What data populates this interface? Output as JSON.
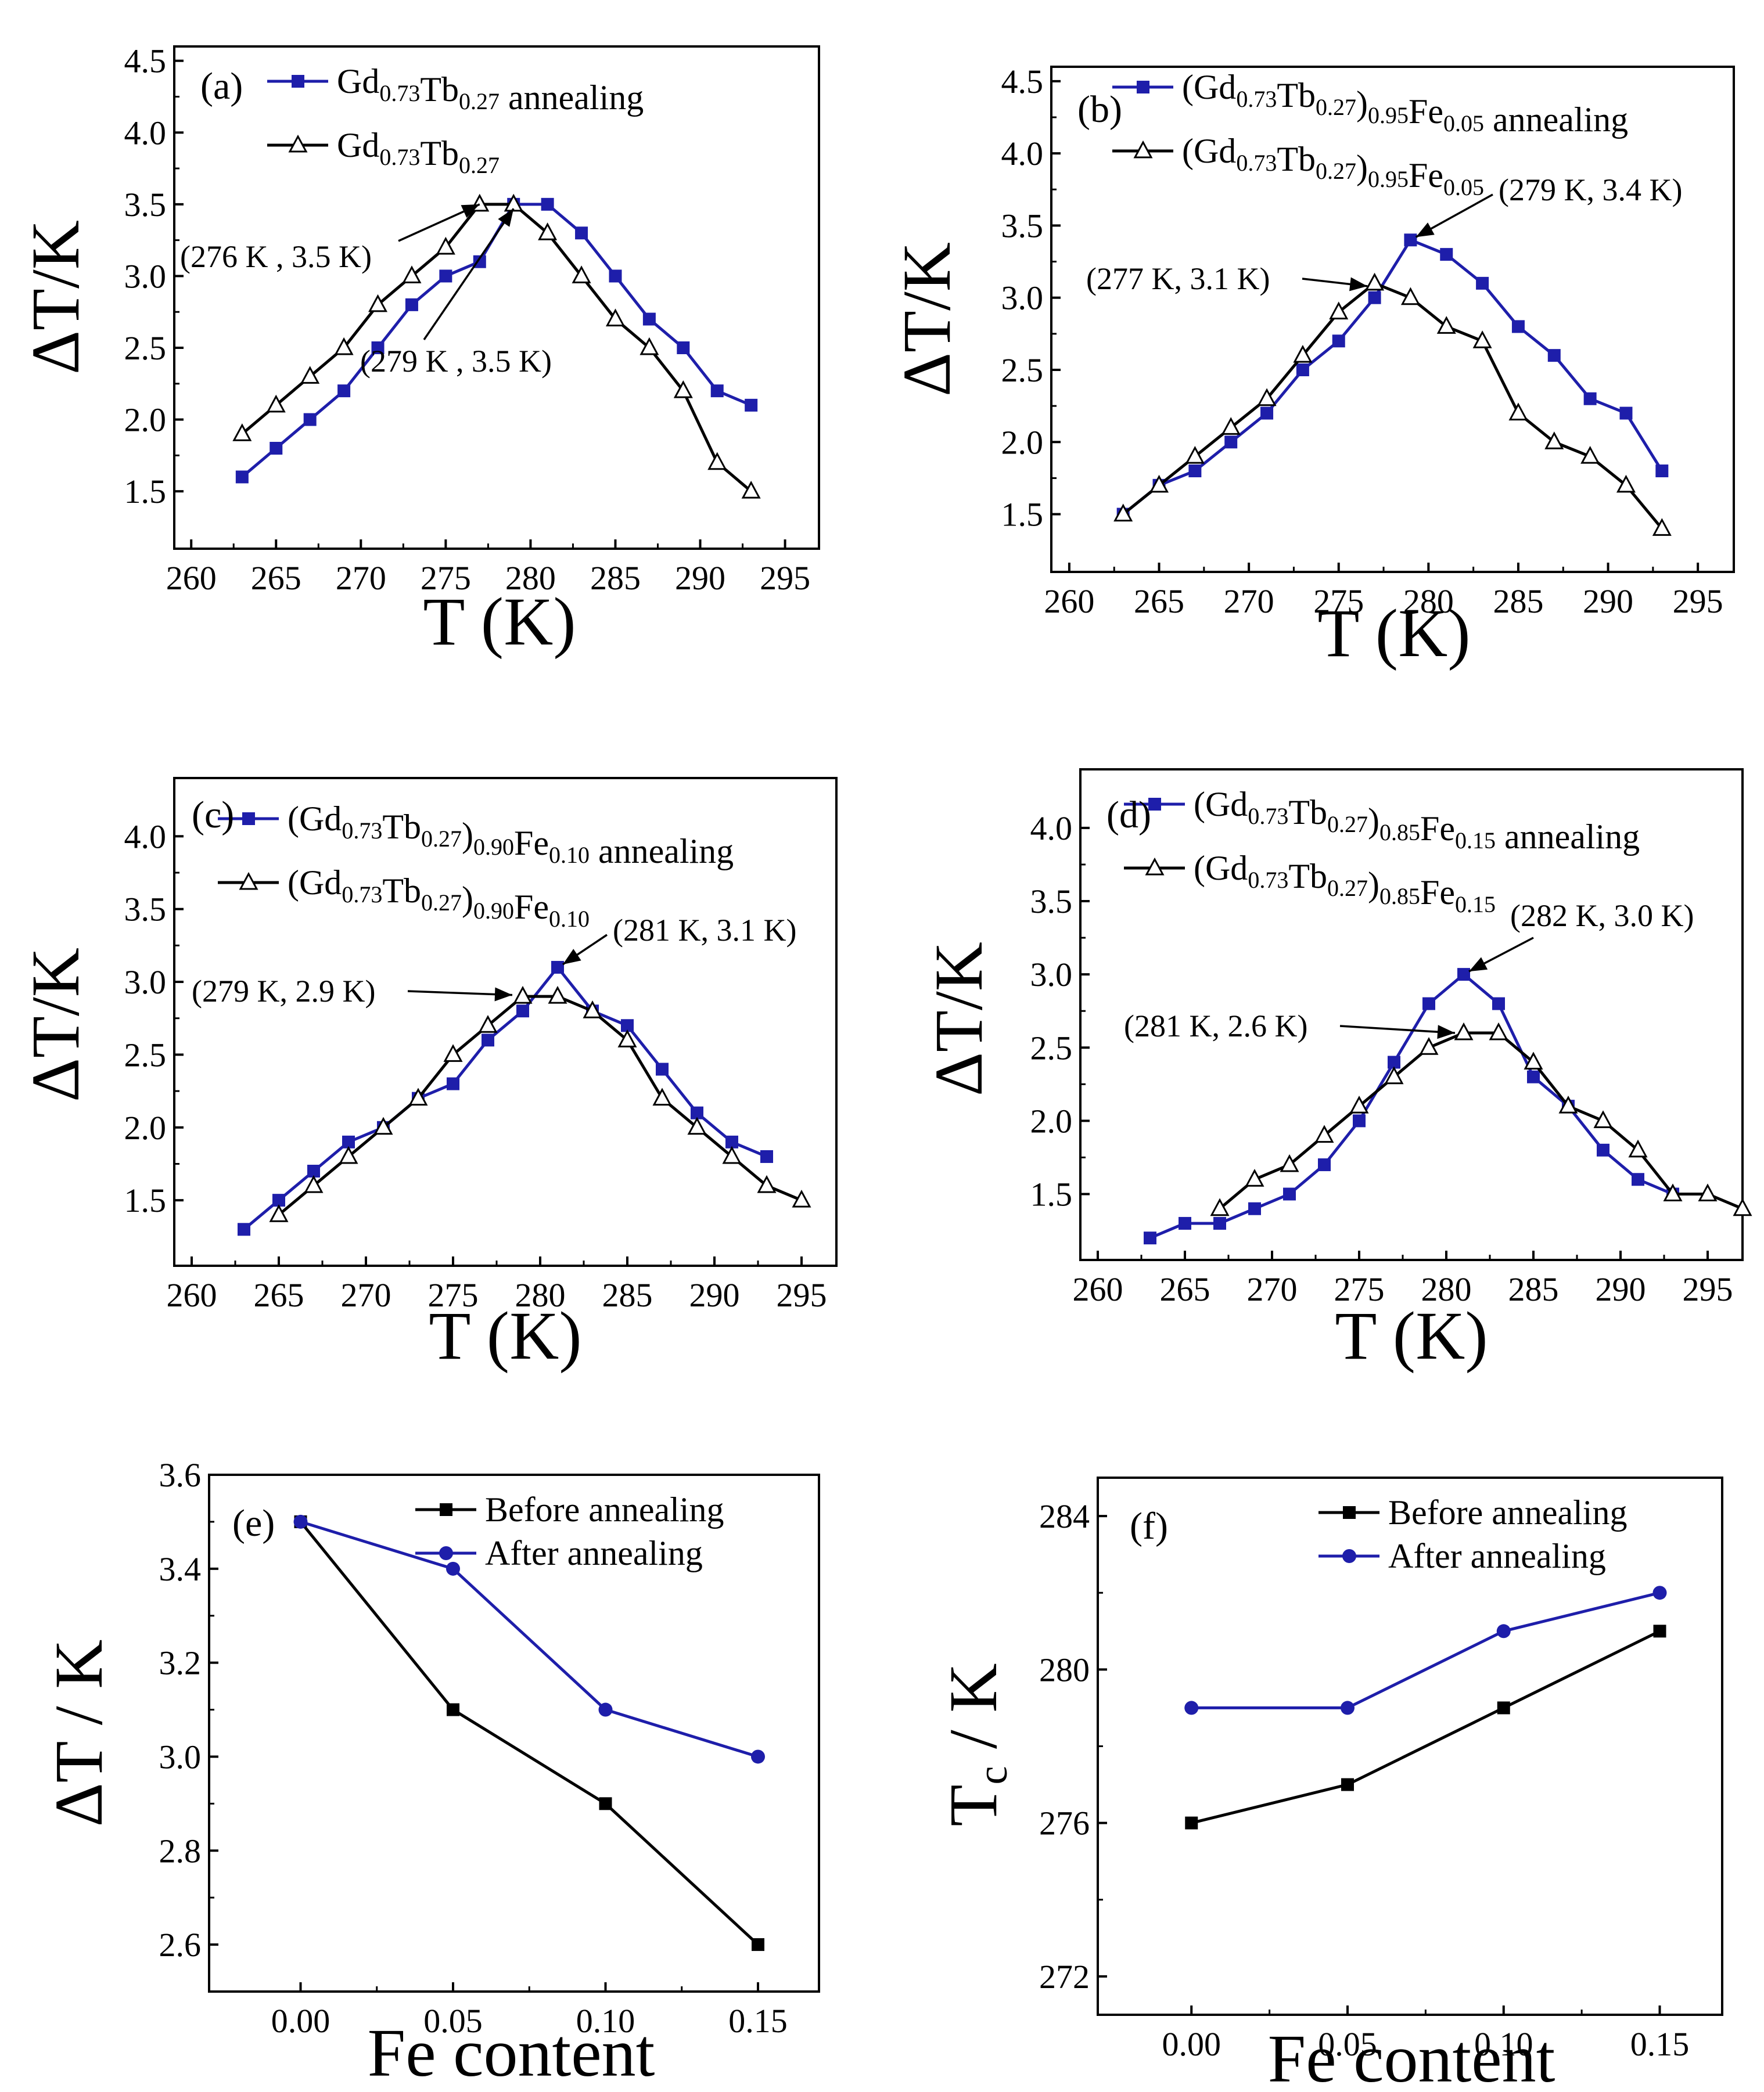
{
  "figure": {
    "subscript_note": "Legend compositions rendered with subscript numerals"
  },
  "chart_data": [
    {
      "id": "a",
      "type": "line",
      "panel_label": "(a)",
      "xlabel": "T (K)",
      "ylabel": "ΔT/K",
      "xlim": [
        259,
        297
      ],
      "ylim": [
        1.1,
        4.6
      ],
      "xticks": [
        260,
        265,
        270,
        275,
        280,
        285,
        290,
        295
      ],
      "yticks": [
        1.5,
        2.0,
        2.5,
        3.0,
        3.5,
        4.0,
        4.5
      ],
      "tick_decimals": 1,
      "series": [
        {
          "name": "Gd0.73Tb0.27 annealing",
          "legend_parts": [
            [
              "Gd",
              ""
            ],
            [
              "0.73",
              "sub"
            ],
            [
              "Tb",
              ""
            ],
            [
              "0.27",
              "sub"
            ],
            [
              " annealing",
              ""
            ]
          ],
          "color": "#1e1eaa",
          "marker": "square",
          "x": [
            263,
            265,
            267,
            269,
            271,
            273,
            275,
            277,
            279,
            281,
            283,
            285,
            287,
            289,
            291,
            293
          ],
          "y": [
            1.6,
            1.8,
            2.0,
            2.2,
            2.5,
            2.8,
            3.0,
            3.1,
            3.5,
            3.5,
            3.3,
            3.0,
            2.7,
            2.5,
            2.2,
            2.1
          ]
        },
        {
          "name": "Gd0.73Tb0.27",
          "legend_parts": [
            [
              "Gd",
              ""
            ],
            [
              "0.73",
              "sub"
            ],
            [
              "Tb",
              ""
            ],
            [
              "0.27",
              "sub"
            ]
          ],
          "color": "#000000",
          "marker": "triangle",
          "x": [
            263,
            265,
            267,
            269,
            271,
            273,
            275,
            277,
            279,
            281,
            283,
            285,
            287,
            289,
            291,
            293
          ],
          "y": [
            1.9,
            2.1,
            2.3,
            2.5,
            2.8,
            3.0,
            3.2,
            3.5,
            3.5,
            3.3,
            3.0,
            2.7,
            2.5,
            2.2,
            1.7,
            1.5
          ]
        }
      ],
      "annotations": [
        {
          "text": "(276 K ,  3.5 K)",
          "target": [
            277,
            3.5
          ]
        },
        {
          "text": "(279 K ,  3.5 K)",
          "target": [
            279,
            3.47
          ]
        }
      ]
    },
    {
      "id": "b",
      "type": "line",
      "panel_label": "(b)",
      "xlabel": "T (K)",
      "ylabel": "ΔT/K",
      "xlim": [
        259,
        297
      ],
      "ylim": [
        1.1,
        4.6
      ],
      "xticks": [
        260,
        265,
        270,
        275,
        280,
        285,
        290,
        295
      ],
      "yticks": [
        1.5,
        2.0,
        2.5,
        3.0,
        3.5,
        4.0,
        4.5
      ],
      "tick_decimals": 1,
      "series": [
        {
          "name": "(Gd0.73Tb0.27)0.95Fe0.05 annealing",
          "legend_parts": [
            [
              "(Gd",
              ""
            ],
            [
              "0.73",
              "sub"
            ],
            [
              "Tb",
              ""
            ],
            [
              "0.27",
              "sub"
            ],
            [
              ")",
              ""
            ],
            [
              "0.95",
              "sub"
            ],
            [
              "Fe",
              ""
            ],
            [
              "0.05",
              "sub"
            ],
            [
              " annealing",
              ""
            ]
          ],
          "color": "#1e1eaa",
          "marker": "square",
          "x": [
            263,
            265,
            267,
            269,
            271,
            273,
            275,
            277,
            279,
            281,
            283,
            285,
            287,
            289,
            291,
            293
          ],
          "y": [
            1.5,
            1.7,
            1.8,
            2.0,
            2.2,
            2.5,
            2.7,
            3.0,
            3.4,
            3.3,
            3.1,
            2.8,
            2.6,
            2.3,
            2.2,
            1.8
          ]
        },
        {
          "name": "(Gd0.73Tb0.27)0.95Fe0.05",
          "legend_parts": [
            [
              "(Gd",
              ""
            ],
            [
              "0.73",
              "sub"
            ],
            [
              "Tb",
              ""
            ],
            [
              "0.27",
              "sub"
            ],
            [
              ")",
              ""
            ],
            [
              "0.95",
              "sub"
            ],
            [
              "Fe",
              ""
            ],
            [
              "0.05",
              "sub"
            ]
          ],
          "color": "#000000",
          "marker": "triangle",
          "x": [
            263,
            265,
            267,
            269,
            271,
            273,
            275,
            277,
            279,
            281,
            283,
            285,
            287,
            289,
            291,
            293
          ],
          "y": [
            1.5,
            1.7,
            1.9,
            2.1,
            2.3,
            2.6,
            2.9,
            3.1,
            3.0,
            2.8,
            2.7,
            2.2,
            2.0,
            1.9,
            1.7,
            1.4
          ]
        }
      ],
      "annotations": [
        {
          "text": "(279 K, 3.4 K)",
          "target": [
            279.3,
            3.42
          ]
        },
        {
          "text": "(277 K, 3.1 K)",
          "target": [
            276.6,
            3.08
          ]
        }
      ]
    },
    {
      "id": "c",
      "type": "line",
      "panel_label": "(c)",
      "xlabel": "T (K)",
      "ylabel": "ΔT/K",
      "xlim": [
        259,
        297
      ],
      "ylim": [
        1.05,
        4.4
      ],
      "xticks": [
        260,
        265,
        270,
        275,
        280,
        285,
        290,
        295
      ],
      "yticks": [
        1.5,
        2.0,
        2.5,
        3.0,
        3.5,
        4.0
      ],
      "tick_decimals": 1,
      "series": [
        {
          "name": "(Gd0.73Tb0.27)0.90Fe0.10 annealing",
          "legend_parts": [
            [
              "(Gd",
              ""
            ],
            [
              "0.73",
              "sub"
            ],
            [
              "Tb",
              ""
            ],
            [
              "0.27",
              "sub"
            ],
            [
              ")",
              ""
            ],
            [
              "0.90",
              "sub"
            ],
            [
              "Fe",
              ""
            ],
            [
              "0.10",
              "sub"
            ],
            [
              " annealing",
              ""
            ]
          ],
          "color": "#1e1eaa",
          "marker": "square",
          "x": [
            263,
            265,
            267,
            269,
            271,
            273,
            275,
            277,
            279,
            281,
            283,
            285,
            287,
            289,
            291,
            293
          ],
          "y": [
            1.3,
            1.5,
            1.7,
            1.9,
            2.0,
            2.2,
            2.3,
            2.6,
            2.8,
            3.1,
            2.8,
            2.7,
            2.4,
            2.1,
            1.9,
            1.8
          ]
        },
        {
          "name": "(Gd0.73Tb0.27)0.90Fe0.10",
          "legend_parts": [
            [
              "(Gd",
              ""
            ],
            [
              "0.73",
              "sub"
            ],
            [
              "Tb",
              ""
            ],
            [
              "0.27",
              "sub"
            ],
            [
              ")",
              ""
            ],
            [
              "0.90",
              "sub"
            ],
            [
              "Fe",
              ""
            ],
            [
              "0.10",
              "sub"
            ]
          ],
          "color": "#000000",
          "marker": "triangle",
          "x": [
            265,
            267,
            269,
            271,
            273,
            275,
            277,
            279,
            281,
            283,
            285,
            287,
            289,
            291,
            293,
            295
          ],
          "y": [
            1.4,
            1.6,
            1.8,
            2.0,
            2.2,
            2.5,
            2.7,
            2.9,
            2.9,
            2.8,
            2.6,
            2.2,
            2.0,
            1.8,
            1.6,
            1.5
          ]
        }
      ],
      "annotations": [
        {
          "text": "(281 K, 3.1 K)",
          "target": [
            281.3,
            3.12
          ]
        },
        {
          "text": "(279 K, 2.9 K)",
          "target": [
            278.4,
            2.91
          ]
        }
      ]
    },
    {
      "id": "d",
      "type": "line",
      "panel_label": "(d)",
      "xlabel": "T (K)",
      "ylabel": "ΔT/K",
      "xlim": [
        259,
        297
      ],
      "ylim": [
        1.05,
        4.4
      ],
      "xticks": [
        260,
        265,
        270,
        275,
        280,
        285,
        290,
        295
      ],
      "yticks": [
        1.5,
        2.0,
        2.5,
        3.0,
        3.5,
        4.0
      ],
      "tick_decimals": 1,
      "series": [
        {
          "name": "(Gd0.73Tb0.27)0.85Fe0.15 annealing",
          "legend_parts": [
            [
              "(Gd",
              ""
            ],
            [
              "0.73",
              "sub"
            ],
            [
              "Tb",
              ""
            ],
            [
              "0.27",
              "sub"
            ],
            [
              ")",
              ""
            ],
            [
              "0.85",
              "sub"
            ],
            [
              "Fe",
              ""
            ],
            [
              "0.15",
              "sub"
            ],
            [
              " annealing",
              ""
            ]
          ],
          "color": "#1e1eaa",
          "marker": "square",
          "x": [
            263,
            265,
            267,
            269,
            271,
            273,
            275,
            277,
            279,
            281,
            283,
            285,
            287,
            289,
            291,
            293
          ],
          "y": [
            1.2,
            1.3,
            1.3,
            1.4,
            1.5,
            1.7,
            2.0,
            2.4,
            2.8,
            3.0,
            2.8,
            2.3,
            2.1,
            1.8,
            1.6,
            1.5
          ]
        },
        {
          "name": "(Gd0.73Tb0.27)0.85Fe0.15",
          "legend_parts": [
            [
              "(Gd",
              ""
            ],
            [
              "0.73",
              "sub"
            ],
            [
              "Tb",
              ""
            ],
            [
              "0.27",
              "sub"
            ],
            [
              ")",
              ""
            ],
            [
              "0.85",
              "sub"
            ],
            [
              "Fe",
              ""
            ],
            [
              "0.15",
              "sub"
            ]
          ],
          "color": "#000000",
          "marker": "triangle",
          "x": [
            267,
            269,
            271,
            273,
            275,
            277,
            279,
            281,
            283,
            285,
            287,
            289,
            291,
            293,
            295,
            297
          ],
          "y": [
            1.4,
            1.6,
            1.7,
            1.9,
            2.1,
            2.3,
            2.5,
            2.6,
            2.6,
            2.4,
            2.1,
            2.0,
            1.8,
            1.5,
            1.5,
            1.4
          ]
        }
      ],
      "annotations": [
        {
          "text": "(282 K, 3.0 K)",
          "target": [
            281.3,
            3.02
          ]
        },
        {
          "text": "(281 K, 2.6 K)",
          "target": [
            280.5,
            2.6
          ]
        }
      ]
    },
    {
      "id": "e",
      "type": "line",
      "panel_label": "(e)",
      "xlabel": "Fe content",
      "ylabel": "ΔT / K",
      "xlim": [
        -0.03,
        0.17
      ],
      "ylim": [
        2.5,
        3.6
      ],
      "xticks": [
        0.0,
        0.05,
        0.1,
        0.15
      ],
      "yticks": [
        2.6,
        2.8,
        3.0,
        3.2,
        3.4,
        3.6
      ],
      "tick_decimals": 2,
      "ytick_decimals": 1,
      "series": [
        {
          "name": "Before annealing",
          "legend_parts": [
            [
              "Before annealing",
              ""
            ]
          ],
          "color": "#000000",
          "marker": "square",
          "x": [
            0.0,
            0.05,
            0.1,
            0.15
          ],
          "y": [
            3.5,
            3.1,
            2.9,
            2.6
          ]
        },
        {
          "name": "After annealing",
          "legend_parts": [
            [
              "After annealing",
              ""
            ]
          ],
          "color": "#1e1eaa",
          "marker": "circle",
          "x": [
            0.0,
            0.05,
            0.1,
            0.15
          ],
          "y": [
            3.5,
            3.4,
            3.1,
            3.0
          ]
        }
      ]
    },
    {
      "id": "f",
      "type": "line",
      "panel_label": "(f)",
      "xlabel": "Fe content",
      "ylabel": "Tc / K",
      "xlim": [
        -0.03,
        0.17
      ],
      "ylim": [
        271,
        285
      ],
      "xticks": [
        0.0,
        0.05,
        0.1,
        0.15
      ],
      "yticks": [
        272,
        276,
        280,
        284
      ],
      "tick_decimals": 2,
      "ytick_decimals": 0,
      "series": [
        {
          "name": "Before annealing",
          "legend_parts": [
            [
              "Before annealing",
              ""
            ]
          ],
          "color": "#000000",
          "marker": "square",
          "x": [
            0.0,
            0.05,
            0.1,
            0.15
          ],
          "y": [
            276,
            277,
            279,
            281
          ]
        },
        {
          "name": "After annealing",
          "legend_parts": [
            [
              "After annealing",
              ""
            ]
          ],
          "color": "#1e1eaa",
          "marker": "circle",
          "x": [
            0.0,
            0.05,
            0.1,
            0.15
          ],
          "y": [
            279,
            279,
            281,
            282
          ]
        }
      ]
    }
  ]
}
